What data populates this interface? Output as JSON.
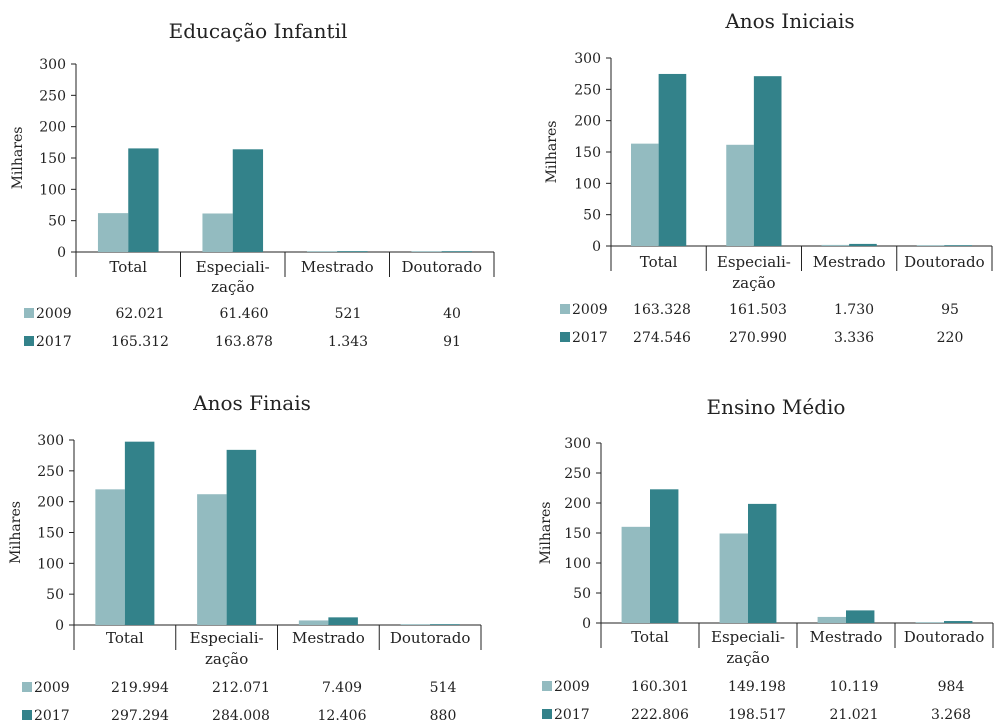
{
  "colors": {
    "s2009": "#93BBC0",
    "s2017": "#33828A",
    "axis": "#222222"
  },
  "chart_data": [
    {
      "type": "bar",
      "title": "Educação Infantil",
      "ylabel": "Milhares",
      "ylim": [
        0,
        300
      ],
      "yticks": [
        "0",
        "50",
        "100",
        "150",
        "200",
        "250",
        "300"
      ],
      "categories": [
        [
          "Total"
        ],
        [
          "Especiali-",
          "zação"
        ],
        [
          "Mestrado"
        ],
        [
          "Doutorado"
        ]
      ],
      "series": [
        {
          "name": "2009",
          "values": [
            62.021,
            61.46,
            0.521,
            0.04
          ],
          "labels": [
            "62.021",
            "61.460",
            "521",
            "40"
          ]
        },
        {
          "name": "2017",
          "values": [
            165.312,
            163.878,
            1.343,
            0.091
          ],
          "labels": [
            "165.312",
            "163.878",
            "1.343",
            "91"
          ]
        }
      ]
    },
    {
      "type": "bar",
      "title": "Anos Iniciais",
      "ylabel": "Milhares",
      "ylim": [
        0,
        300
      ],
      "yticks": [
        "0",
        "50",
        "100",
        "150",
        "200",
        "250",
        "300"
      ],
      "categories": [
        [
          "Total"
        ],
        [
          "Especiali-",
          "zação"
        ],
        [
          "Mestrado"
        ],
        [
          "Doutorado"
        ]
      ],
      "series": [
        {
          "name": "2009",
          "values": [
            163.328,
            161.503,
            1.73,
            0.095
          ],
          "labels": [
            "163.328",
            "161.503",
            "1.730",
            "95"
          ]
        },
        {
          "name": "2017",
          "values": [
            274.546,
            270.99,
            3.336,
            0.22
          ],
          "labels": [
            "274.546",
            "270.990",
            "3.336",
            "220"
          ]
        }
      ]
    },
    {
      "type": "bar",
      "title": "Anos Finais",
      "ylabel": "Milhares",
      "ylim": [
        0,
        300
      ],
      "yticks": [
        "0",
        "50",
        "100",
        "150",
        "200",
        "250",
        "300"
      ],
      "categories": [
        [
          "Total"
        ],
        [
          "Especiali-",
          "zação"
        ],
        [
          "Mestrado"
        ],
        [
          "Doutorado"
        ]
      ],
      "series": [
        {
          "name": "2009",
          "values": [
            219.994,
            212.071,
            7.409,
            0.514
          ],
          "labels": [
            "219.994",
            "212.071",
            "7.409",
            "514"
          ]
        },
        {
          "name": "2017",
          "values": [
            297.294,
            284.008,
            12.406,
            0.88
          ],
          "labels": [
            "297.294",
            "284.008",
            "12.406",
            "880"
          ]
        }
      ]
    },
    {
      "type": "bar",
      "title": "Ensino Médio",
      "ylabel": "Milhares",
      "ylim": [
        0,
        300
      ],
      "yticks": [
        "0",
        "50",
        "100",
        "150",
        "200",
        "250",
        "300"
      ],
      "categories": [
        [
          "Total"
        ],
        [
          "Especiali-",
          "zação"
        ],
        [
          "Mestrado"
        ],
        [
          "Doutorado"
        ]
      ],
      "series": [
        {
          "name": "2009",
          "values": [
            160.301,
            149.198,
            10.119,
            0.984
          ],
          "labels": [
            "160.301",
            "149.198",
            "10.119",
            "984"
          ]
        },
        {
          "name": "2017",
          "values": [
            222.806,
            198.517,
            21.021,
            3.268
          ],
          "labels": [
            "222.806",
            "198.517",
            "21.021",
            "3.268"
          ]
        }
      ]
    }
  ]
}
